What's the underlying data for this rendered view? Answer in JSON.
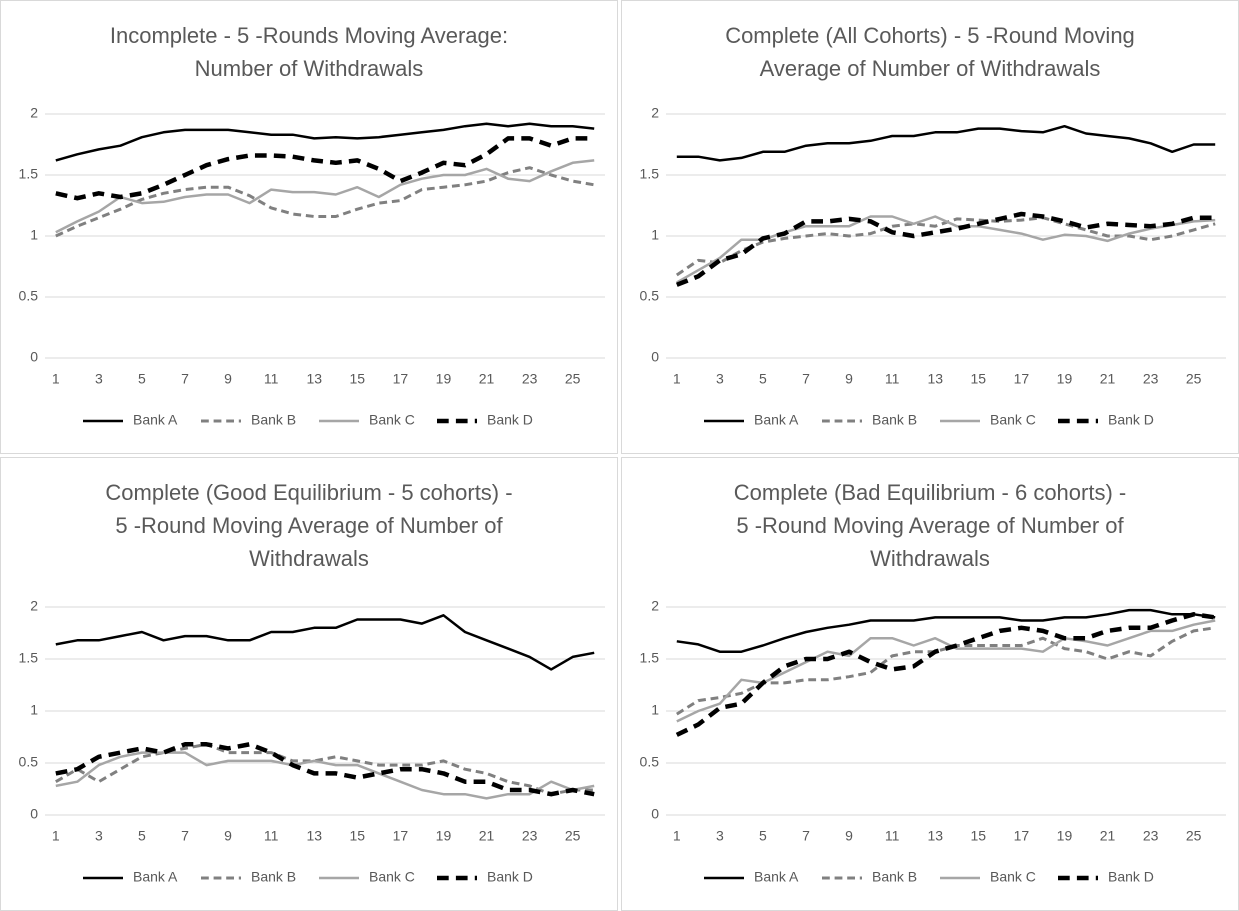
{
  "chart_data": [
    {
      "type": "line",
      "title": [
        "Incomplete - 5 -Rounds Moving Average:",
        "Number of Withdrawals"
      ],
      "categories": [
        1,
        null,
        3,
        null,
        5,
        null,
        7,
        null,
        9,
        null,
        11,
        null,
        13,
        null,
        15,
        null,
        17,
        null,
        19,
        null,
        21,
        null,
        23,
        null,
        25,
        null
      ],
      "ylim": [
        0,
        2
      ],
      "yticks": [
        0,
        0.5,
        1,
        1.5,
        2
      ],
      "grid": true,
      "legend": "bottom",
      "series": [
        {
          "name": "Bank A",
          "color": "#000000",
          "dashed": false,
          "width": 2.5,
          "values": [
            1.62,
            1.67,
            1.71,
            1.74,
            1.81,
            1.85,
            1.87,
            1.87,
            1.87,
            1.85,
            1.83,
            1.83,
            1.8,
            1.81,
            1.8,
            1.81,
            1.83,
            1.85,
            1.87,
            1.9,
            1.92,
            1.9,
            1.92,
            1.9,
            1.9,
            1.88
          ]
        },
        {
          "name": "Bank B",
          "color": "#808080",
          "dashed": true,
          "width": 3,
          "values": [
            1.0,
            1.08,
            1.15,
            1.22,
            1.3,
            1.35,
            1.38,
            1.4,
            1.4,
            1.33,
            1.23,
            1.18,
            1.16,
            1.16,
            1.22,
            1.27,
            1.29,
            1.38,
            1.4,
            1.42,
            1.45,
            1.52,
            1.56,
            1.5,
            1.45,
            1.42
          ]
        },
        {
          "name": "Bank C",
          "color": "#a6a6a6",
          "dashed": false,
          "width": 2.5,
          "values": [
            1.03,
            1.12,
            1.2,
            1.32,
            1.27,
            1.28,
            1.32,
            1.34,
            1.34,
            1.27,
            1.38,
            1.36,
            1.36,
            1.34,
            1.4,
            1.32,
            1.42,
            1.47,
            1.5,
            1.5,
            1.55,
            1.47,
            1.45,
            1.53,
            1.6,
            1.62
          ]
        },
        {
          "name": "Bank D",
          "color": "#000000",
          "dashed": true,
          "width": 4.5,
          "values": [
            1.35,
            1.31,
            1.35,
            1.32,
            1.35,
            1.42,
            1.5,
            1.58,
            1.63,
            1.66,
            1.66,
            1.65,
            1.62,
            1.6,
            1.62,
            1.55,
            1.45,
            1.52,
            1.6,
            1.58,
            1.67,
            1.8,
            1.8,
            1.74,
            1.8,
            1.8
          ]
        }
      ]
    },
    {
      "type": "line",
      "title": [
        "Complete (All Cohorts) - 5 -Round Moving",
        "Average of Number of Withdrawals"
      ],
      "categories": [
        1,
        null,
        3,
        null,
        5,
        null,
        7,
        null,
        9,
        null,
        11,
        null,
        13,
        null,
        15,
        null,
        17,
        null,
        19,
        null,
        21,
        null,
        23,
        null,
        25,
        null
      ],
      "ylim": [
        0,
        2
      ],
      "yticks": [
        0,
        0.5,
        1,
        1.5,
        2
      ],
      "grid": true,
      "legend": "bottom",
      "series": [
        {
          "name": "Bank A",
          "color": "#000000",
          "dashed": false,
          "width": 2.5,
          "values": [
            1.65,
            1.65,
            1.62,
            1.64,
            1.69,
            1.69,
            1.74,
            1.76,
            1.76,
            1.78,
            1.82,
            1.82,
            1.85,
            1.85,
            1.88,
            1.88,
            1.86,
            1.85,
            1.9,
            1.84,
            1.82,
            1.8,
            1.76,
            1.69,
            1.75,
            1.75
          ]
        },
        {
          "name": "Bank B",
          "color": "#808080",
          "dashed": true,
          "width": 3,
          "values": [
            0.68,
            0.8,
            0.78,
            0.88,
            0.95,
            0.98,
            1.0,
            1.02,
            1.0,
            1.02,
            1.08,
            1.1,
            1.08,
            1.14,
            1.13,
            1.12,
            1.13,
            1.15,
            1.1,
            1.05,
            1.0,
            1.0,
            0.97,
            1.0,
            1.05,
            1.1
          ]
        },
        {
          "name": "Bank C",
          "color": "#a6a6a6",
          "dashed": false,
          "width": 2.5,
          "values": [
            0.62,
            0.72,
            0.82,
            0.97,
            0.97,
            1.03,
            1.08,
            1.08,
            1.08,
            1.16,
            1.16,
            1.1,
            1.16,
            1.08,
            1.08,
            1.05,
            1.02,
            0.97,
            1.01,
            1.0,
            0.96,
            1.02,
            1.06,
            1.09,
            1.12,
            1.13
          ]
        },
        {
          "name": "Bank D",
          "color": "#000000",
          "dashed": true,
          "width": 4.5,
          "values": [
            0.6,
            0.67,
            0.8,
            0.85,
            0.98,
            1.02,
            1.12,
            1.12,
            1.14,
            1.12,
            1.03,
            1.0,
            1.03,
            1.06,
            1.1,
            1.14,
            1.18,
            1.16,
            1.12,
            1.07,
            1.1,
            1.09,
            1.08,
            1.1,
            1.15,
            1.15
          ]
        }
      ]
    },
    {
      "type": "line",
      "title": [
        "Complete (Good Equilibrium - 5 cohorts) -",
        "5 -Round Moving Average of Number of",
        "Withdrawals"
      ],
      "categories": [
        1,
        null,
        3,
        null,
        5,
        null,
        7,
        null,
        9,
        null,
        11,
        null,
        13,
        null,
        15,
        null,
        17,
        null,
        19,
        null,
        21,
        null,
        23,
        null,
        25,
        null
      ],
      "ylim": [
        0,
        2
      ],
      "yticks": [
        0,
        0.5,
        1,
        1.5,
        2
      ],
      "grid": true,
      "legend": "bottom",
      "series": [
        {
          "name": "Bank A",
          "color": "#000000",
          "dashed": false,
          "width": 2.5,
          "values": [
            1.64,
            1.68,
            1.68,
            1.72,
            1.76,
            1.68,
            1.72,
            1.72,
            1.68,
            1.68,
            1.76,
            1.76,
            1.8,
            1.8,
            1.88,
            1.88,
            1.88,
            1.84,
            1.92,
            1.76,
            1.68,
            1.6,
            1.52,
            1.4,
            1.52,
            1.56
          ]
        },
        {
          "name": "Bank B",
          "color": "#808080",
          "dashed": true,
          "width": 3,
          "values": [
            0.32,
            0.44,
            0.32,
            0.44,
            0.56,
            0.6,
            0.64,
            0.68,
            0.6,
            0.6,
            0.6,
            0.52,
            0.52,
            0.56,
            0.52,
            0.48,
            0.48,
            0.48,
            0.52,
            0.44,
            0.4,
            0.32,
            0.28,
            0.2,
            0.24,
            0.24
          ]
        },
        {
          "name": "Bank C",
          "color": "#a6a6a6",
          "dashed": false,
          "width": 2.5,
          "values": [
            0.28,
            0.32,
            0.48,
            0.56,
            0.6,
            0.6,
            0.6,
            0.48,
            0.52,
            0.52,
            0.52,
            0.48,
            0.52,
            0.48,
            0.48,
            0.4,
            0.32,
            0.24,
            0.2,
            0.2,
            0.16,
            0.2,
            0.2,
            0.32,
            0.24,
            0.28
          ]
        },
        {
          "name": "Bank D",
          "color": "#000000",
          "dashed": true,
          "width": 4.5,
          "values": [
            0.4,
            0.44,
            0.56,
            0.6,
            0.64,
            0.6,
            0.68,
            0.68,
            0.64,
            0.68,
            0.6,
            0.48,
            0.4,
            0.4,
            0.36,
            0.4,
            0.44,
            0.44,
            0.4,
            0.32,
            0.32,
            0.24,
            0.24,
            0.2,
            0.24,
            0.2
          ]
        }
      ]
    },
    {
      "type": "line",
      "title": [
        "Complete (Bad Equilibrium - 6 cohorts) -",
        "5 -Round Moving Average of Number of",
        "Withdrawals"
      ],
      "categories": [
        1,
        null,
        3,
        null,
        5,
        null,
        7,
        null,
        9,
        null,
        11,
        null,
        13,
        null,
        15,
        null,
        17,
        null,
        19,
        null,
        21,
        null,
        23,
        null,
        25,
        null
      ],
      "ylim": [
        0,
        2
      ],
      "yticks": [
        0,
        0.5,
        1,
        1.5,
        2
      ],
      "grid": true,
      "legend": "bottom",
      "series": [
        {
          "name": "Bank A",
          "color": "#000000",
          "dashed": false,
          "width": 2.5,
          "values": [
            1.67,
            1.64,
            1.57,
            1.57,
            1.63,
            1.7,
            1.76,
            1.8,
            1.83,
            1.87,
            1.87,
            1.87,
            1.9,
            1.9,
            1.9,
            1.9,
            1.87,
            1.87,
            1.9,
            1.9,
            1.93,
            1.97,
            1.97,
            1.93,
            1.93,
            1.9
          ]
        },
        {
          "name": "Bank B",
          "color": "#808080",
          "dashed": true,
          "width": 3,
          "values": [
            0.97,
            1.1,
            1.13,
            1.17,
            1.27,
            1.27,
            1.3,
            1.3,
            1.33,
            1.37,
            1.53,
            1.57,
            1.57,
            1.63,
            1.63,
            1.63,
            1.63,
            1.7,
            1.6,
            1.57,
            1.5,
            1.57,
            1.53,
            1.67,
            1.77,
            1.8
          ]
        },
        {
          "name": "Bank C",
          "color": "#a6a6a6",
          "dashed": false,
          "width": 2.5,
          "values": [
            0.9,
            1.0,
            1.07,
            1.3,
            1.27,
            1.37,
            1.47,
            1.57,
            1.53,
            1.7,
            1.7,
            1.63,
            1.7,
            1.6,
            1.6,
            1.6,
            1.6,
            1.57,
            1.7,
            1.67,
            1.63,
            1.7,
            1.77,
            1.77,
            1.83,
            1.87
          ]
        },
        {
          "name": "Bank D",
          "color": "#000000",
          "dashed": true,
          "width": 4.5,
          "values": [
            0.77,
            0.87,
            1.03,
            1.07,
            1.27,
            1.43,
            1.5,
            1.5,
            1.57,
            1.47,
            1.4,
            1.43,
            1.57,
            1.63,
            1.7,
            1.77,
            1.8,
            1.77,
            1.7,
            1.7,
            1.77,
            1.8,
            1.8,
            1.87,
            1.93,
            1.9
          ]
        }
      ]
    }
  ]
}
